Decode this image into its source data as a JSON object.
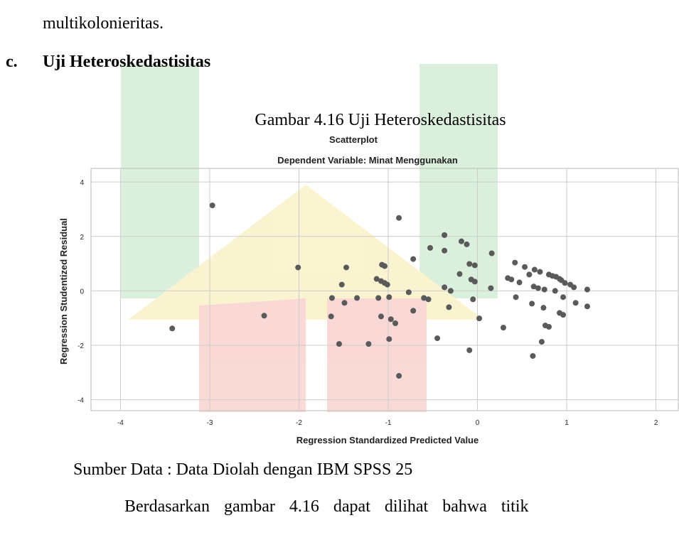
{
  "document": {
    "line_prev": "multikolonieritas.",
    "section_marker": "c.",
    "section_title": "Uji Heteroskedastisitas",
    "figure_caption": "Gambar 4.16 Uji Heteroskedastisitas",
    "source": "Sumber Data : Data Diolah dengan IBM SPSS 25",
    "paragraph": "Berdasarkan gambar 4.16 dapat dilihat bahwa titik"
  },
  "chart_data": {
    "type": "scatter",
    "title": "Scatterplot",
    "subtitle": "Dependent Variable: Minat Menggunakan",
    "x_label": "Regression Standardized Predicted Value",
    "y_label": "Regression Studentized Residual",
    "color": "#5a5a5a",
    "grid": true,
    "xlim": [
      -4.33,
      2.25
    ],
    "ylim": [
      -4.4,
      4.5
    ],
    "xticks": [
      -4,
      -3,
      -2,
      -1,
      0,
      1,
      2
    ],
    "yticks": [
      -4,
      -2,
      0,
      2,
      4
    ],
    "x": [
      -3.42,
      -2.97,
      -2.39,
      -2.01,
      -1.63,
      -1.64,
      -1.52,
      -1.47,
      -1.49,
      -1.55,
      -1.35,
      -1.22,
      -1.13,
      -1.08,
      -1.04,
      -1.01,
      -1.07,
      -1.04,
      -1.11,
      -1.08,
      -0.99,
      -0.97,
      -0.92,
      -0.88,
      -0.88,
      -0.99,
      -0.77,
      -0.72,
      -0.72,
      -0.6,
      -0.55,
      -0.53,
      -0.45,
      -0.37,
      -0.37,
      -0.37,
      -0.3,
      -0.32,
      -0.2,
      -0.18,
      -0.12,
      -0.09,
      -0.09,
      -0.07,
      -0.03,
      -0.03,
      -0.05,
      0.02,
      0.15,
      0.16,
      0.29,
      0.34,
      0.38,
      0.42,
      0.43,
      0.47,
      0.53,
      0.58,
      0.61,
      0.63,
      0.62,
      0.64,
      0.68,
      0.7,
      0.72,
      0.74,
      0.75,
      0.76,
      0.8,
      0.8,
      0.84,
      0.87,
      0.88,
      0.92,
      0.94,
      0.92,
      0.96,
      0.96,
      0.98,
      1.04,
      1.08,
      1.1,
      1.23,
      1.23
    ],
    "values": [
      -1.38,
      3.14,
      -0.91,
      0.86,
      -0.26,
      -0.94,
      0.23,
      0.86,
      -0.44,
      -1.95,
      -0.26,
      -1.95,
      0.44,
      0.36,
      0.29,
      0.23,
      0.96,
      0.91,
      -0.26,
      -0.94,
      -1.77,
      -1.04,
      -1.19,
      2.68,
      -3.12,
      -0.23,
      -0.05,
      -0.73,
      1.17,
      -0.26,
      -0.31,
      1.58,
      -1.74,
      1.48,
      2.05,
      0.13,
      0,
      -0.6,
      0.62,
      1.82,
      1.71,
      0.99,
      -2.18,
      0.42,
      0.34,
      0.94,
      -0.31,
      -1.01,
      0.1,
      1.38,
      -1.35,
      0.47,
      0.42,
      1.04,
      -0.23,
      0.31,
      0.88,
      0.6,
      -0.47,
      0.16,
      -2.39,
      0.78,
      0.1,
      0.7,
      -1.87,
      -0.62,
      0.05,
      -1.27,
      0.6,
      -1.32,
      0.55,
      0,
      0.52,
      0.44,
      0.39,
      -0.81,
      -0.23,
      -0.88,
      0.29,
      0.23,
      0.13,
      -0.44,
      0.05,
      -0.57
    ]
  }
}
